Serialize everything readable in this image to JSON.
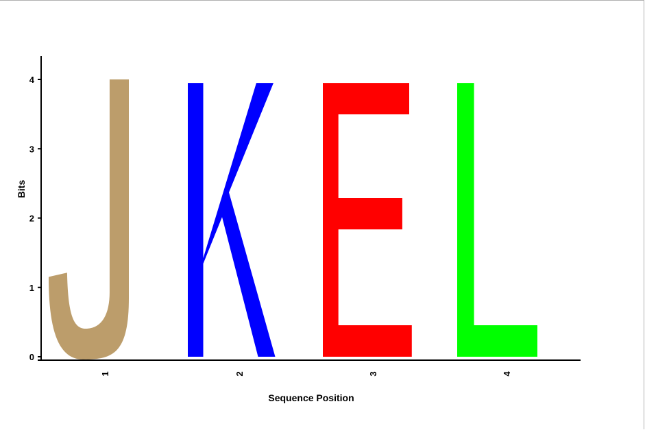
{
  "chart_data": {
    "type": "sequence-logo",
    "xlabel": "Sequence Position",
    "ylabel": "Bits",
    "ylim": [
      0,
      4
    ],
    "yticks": [
      "0",
      "1",
      "2",
      "3",
      "4"
    ],
    "positions": [
      "1",
      "2",
      "3",
      "4"
    ],
    "letters": [
      {
        "position": "1",
        "letter": "J",
        "bits": 4.0,
        "color": "#bc9d6b"
      },
      {
        "position": "2",
        "letter": "K",
        "bits": 3.95,
        "color": "#0000ff"
      },
      {
        "position": "3",
        "letter": "E",
        "bits": 3.95,
        "color": "#ff0000"
      },
      {
        "position": "4",
        "letter": "L",
        "bits": 3.95,
        "color": "#00ff00"
      }
    ]
  }
}
